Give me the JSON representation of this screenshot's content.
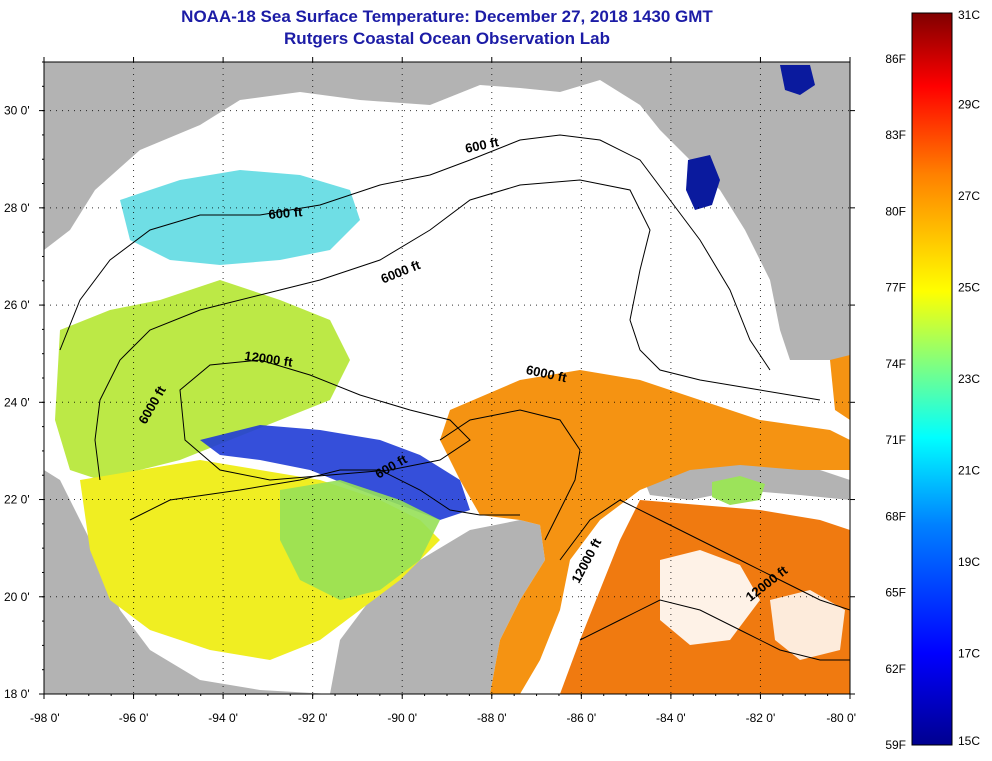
{
  "title": {
    "line1": "NOAA-18 Sea Surface Temperature:  December 27, 2018 1430 GMT",
    "line2": "Rutgers Coastal Ocean Observation Lab"
  },
  "map": {
    "lon_range": [
      -98,
      -80
    ],
    "lat_range": [
      18,
      31
    ],
    "lon_ticks": [
      {
        "value": -98,
        "label": "-98 0'"
      },
      {
        "value": -96,
        "label": "-96 0'"
      },
      {
        "value": -94,
        "label": "-94 0'"
      },
      {
        "value": -92,
        "label": "-92 0'"
      },
      {
        "value": -90,
        "label": "-90 0'"
      },
      {
        "value": -88,
        "label": "-88 0'"
      },
      {
        "value": -86,
        "label": "-86 0'"
      },
      {
        "value": -84,
        "label": "-84 0'"
      },
      {
        "value": -82,
        "label": "-82 0'"
      },
      {
        "value": -80,
        "label": "-80 0'"
      }
    ],
    "lat_ticks": [
      {
        "value": 30,
        "label": "30 0'"
      },
      {
        "value": 28,
        "label": "28 0'"
      },
      {
        "value": 26,
        "label": "26 0'"
      },
      {
        "value": 24,
        "label": "24 0'"
      },
      {
        "value": 22,
        "label": "22 0'"
      },
      {
        "value": 20,
        "label": "20 0'"
      },
      {
        "value": 18,
        "label": "18 0'"
      }
    ],
    "land_color": "#b3b3b3",
    "cloud_color": "#ffffff",
    "contour_labels": [
      {
        "text": "600 ft",
        "lon": -92.6,
        "lat": 27.8,
        "angle": -5
      },
      {
        "text": "600 ft",
        "lon": -88.2,
        "lat": 29.2,
        "angle": -12
      },
      {
        "text": "6000 ft",
        "lon": -90.0,
        "lat": 26.6,
        "angle": -22
      },
      {
        "text": "12000 ft",
        "lon": -93.0,
        "lat": 24.8,
        "angle": 8
      },
      {
        "text": "6000 ft",
        "lon": -95.5,
        "lat": 23.9,
        "angle": -60
      },
      {
        "text": "6000 ft",
        "lon": -86.8,
        "lat": 24.5,
        "angle": 12
      },
      {
        "text": "600 ft",
        "lon": -90.2,
        "lat": 22.6,
        "angle": -30
      },
      {
        "text": "12000 ft",
        "lon": -85.8,
        "lat": 20.7,
        "angle": -62
      },
      {
        "text": "12000 ft",
        "lon": -81.8,
        "lat": 20.2,
        "angle": -38
      }
    ]
  },
  "colorbar": {
    "fahrenheit": [
      {
        "value": 86,
        "label": "86F"
      },
      {
        "value": 83,
        "label": "83F"
      },
      {
        "value": 80,
        "label": "80F"
      },
      {
        "value": 77,
        "label": "77F"
      },
      {
        "value": 74,
        "label": "74F"
      },
      {
        "value": 71,
        "label": "71F"
      },
      {
        "value": 68,
        "label": "68F"
      },
      {
        "value": 65,
        "label": "65F"
      },
      {
        "value": 62,
        "label": "62F"
      },
      {
        "value": 59,
        "label": "59F"
      }
    ],
    "celsius": [
      {
        "value": 31,
        "label": "31C"
      },
      {
        "value": 29,
        "label": "29C"
      },
      {
        "value": 27,
        "label": "27C"
      },
      {
        "value": 25,
        "label": "25C"
      },
      {
        "value": 23,
        "label": "23C"
      },
      {
        "value": 21,
        "label": "21C"
      },
      {
        "value": 19,
        "label": "19C"
      },
      {
        "value": 17,
        "label": "17C"
      },
      {
        "value": 15,
        "label": "15C"
      }
    ],
    "range_c": [
      15,
      31
    ],
    "colors": [
      "#00008f",
      "#0000ff",
      "#0080ff",
      "#00ffff",
      "#80ff80",
      "#ffff00",
      "#ff8000",
      "#ff0000",
      "#800000"
    ]
  }
}
